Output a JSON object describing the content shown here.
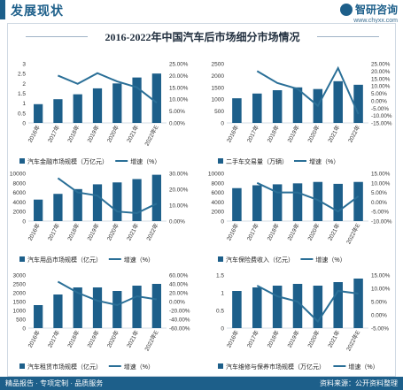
{
  "header": {
    "section_title": "发展现状",
    "brand_name": "智研咨询",
    "brand_url": "www.chyxx.com"
  },
  "main_title": "2016-2022年中国汽车后市场细分市场情况",
  "footer": {
    "left": "精品报告 · 专项定制 · 品质服务",
    "right": "资料来源：公开资料整理"
  },
  "colors": {
    "bar": "#1d5f8a",
    "line": "#2a6f97",
    "accent": "#1d5f8a"
  },
  "chart_data": [
    {
      "type": "bar+line",
      "categories": [
        "2016年",
        "2017年",
        "2018年",
        "2019年",
        "2020年",
        "2021年",
        "2022年E"
      ],
      "values": [
        0.95,
        1.2,
        1.45,
        1.75,
        2.0,
        2.3,
        2.5
      ],
      "growth": [
        null,
        20.0,
        16.5,
        21.0,
        17.5,
        15.0,
        8.5
      ],
      "ylim": [
        0,
        3
      ],
      "yticks": [
        "0",
        "0.5",
        "1",
        "1.5",
        "2",
        "2.5",
        "3"
      ],
      "y2lim": [
        0,
        25
      ],
      "y2ticks": [
        "0.00%",
        "5.00%",
        "10.00%",
        "15.00%",
        "20.00%",
        "25.00%"
      ],
      "bar_legend": "汽车金融市场规模（万亿元）",
      "line_legend": "增速（%）"
    },
    {
      "type": "bar+line",
      "categories": [
        "2016年",
        "2017年",
        "2018年",
        "2019年",
        "2020年",
        "2021年",
        "2022年"
      ],
      "values": [
        1040,
        1240,
        1380,
        1500,
        1430,
        1760,
        1610
      ],
      "growth": [
        null,
        20.0,
        12.0,
        8.0,
        -3.5,
        22.0,
        -9.0
      ],
      "ylim": [
        0,
        2500
      ],
      "yticks": [
        "0",
        "500",
        "1000",
        "1500",
        "2000",
        "2500"
      ],
      "y2lim": [
        -15,
        25
      ],
      "y2ticks": [
        "-15.00%",
        "-10.00%",
        "-5.00%",
        "0.00%",
        "5.00%",
        "10.00%",
        "15.00%",
        "20.00%",
        "25.00%"
      ],
      "bar_legend": "二手车交易量（万辆）",
      "line_legend": "增速（%）"
    },
    {
      "type": "bar+line",
      "categories": [
        "2016年",
        "2017年",
        "2018年",
        "2019年",
        "2020年",
        "2021年",
        "2022年"
      ],
      "values": [
        4500,
        5700,
        6700,
        7700,
        8100,
        8800,
        9700
      ],
      "growth": [
        null,
        27.0,
        18.0,
        16.0,
        6.0,
        5.0,
        11.0
      ],
      "ylim": [
        0,
        10000
      ],
      "yticks": [
        "0",
        "2000",
        "4000",
        "6000",
        "8000",
        "10000"
      ],
      "y2lim": [
        0,
        30
      ],
      "y2ticks": [
        "0.00%",
        "10.00%",
        "20.00%",
        "30.00%"
      ],
      "bar_legend": "汽车用品市场规模（亿元）",
      "line_legend": "增速（%）"
    },
    {
      "type": "bar+line",
      "categories": [
        "2016年",
        "2017年",
        "2018年",
        "2019年",
        "2020年",
        "2021年",
        "2022年E"
      ],
      "values": [
        6900,
        7500,
        7700,
        7900,
        8200,
        7800,
        8200
      ],
      "growth": [
        null,
        10.0,
        5.0,
        5.0,
        1.0,
        -5.0,
        3.0
      ],
      "ylim": [
        0,
        10000
      ],
      "yticks": [
        "0",
        "2000",
        "4000",
        "6000",
        "8000",
        "10000"
      ],
      "y2lim": [
        -10,
        15
      ],
      "y2ticks": [
        "-10.00%",
        "-5.00%",
        "0.00%",
        "5.00%",
        "10.00%",
        "15.00%"
      ],
      "bar_legend": "汽车保险费收入（亿元）",
      "line_legend": "增速（%）"
    },
    {
      "type": "bar+line",
      "categories": [
        "2016年",
        "2017年",
        "2018年",
        "2019年",
        "2020年",
        "2021年",
        "2022年E"
      ],
      "values": [
        1300,
        1900,
        2300,
        2300,
        2100,
        2400,
        2500
      ],
      "growth": [
        null,
        45.0,
        20.0,
        2.0,
        -8.0,
        12.0,
        5.0
      ],
      "ylim": [
        0,
        3000
      ],
      "yticks": [
        "0",
        "500",
        "1000",
        "1500",
        "2000",
        "2500",
        "3000"
      ],
      "y2lim": [
        -60,
        60
      ],
      "y2ticks": [
        "-60.00%",
        "-40.00%",
        "-20.00%",
        "0.00%",
        "20.00%",
        "40.00%",
        "60.00%"
      ],
      "bar_legend": "汽车租赁市场规模（亿元）",
      "line_legend": "增速（%）"
    },
    {
      "type": "bar+line",
      "categories": [
        "2016年",
        "2017年",
        "2018年",
        "2019年",
        "2020年",
        "2021年",
        "2022年E"
      ],
      "values": [
        1.05,
        1.15,
        1.2,
        1.25,
        1.2,
        1.3,
        1.4
      ],
      "growth": [
        null,
        11.0,
        7.0,
        5.0,
        -2.5,
        9.0,
        8.0
      ],
      "ylim": [
        0,
        1.5
      ],
      "yticks": [
        "0",
        "0.5",
        "1",
        "1.5"
      ],
      "y2lim": [
        -5,
        15
      ],
      "y2ticks": [
        "-5.00%",
        "0.00%",
        "5.00%",
        "10.00%",
        "15.00%"
      ],
      "bar_legend": "汽车维修与保养市场规模（万亿元）",
      "line_legend": "增速（%）"
    }
  ]
}
